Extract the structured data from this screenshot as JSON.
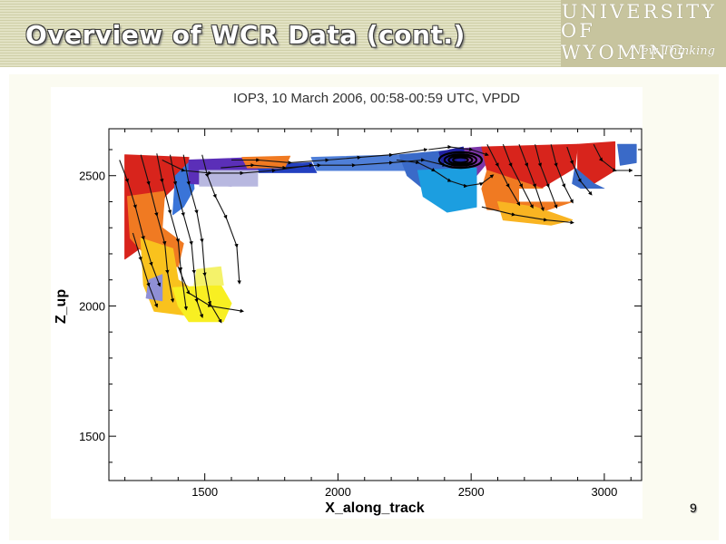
{
  "slide": {
    "title": "Overview of WCR Data (cont.)",
    "page_number": "9",
    "logo": {
      "line1": "UNIVERSITY",
      "line2": "OF WYOMING",
      "tagline": "New Thinking"
    }
  },
  "chart_data": {
    "type": "contour-vector",
    "title": "IOP3,  10 March 2006, 00:58-00:59 UTC, VPDD",
    "xlabel": "X_along_track",
    "ylabel": "Z_up",
    "xlim": [
      1140,
      3140
    ],
    "ylim": [
      1330,
      2680
    ],
    "x_ticks": [
      1500,
      2000,
      2500,
      3000
    ],
    "y_ticks": [
      1500,
      2000,
      2500
    ],
    "regions": [
      {
        "color": "#d8241c",
        "points": [
          [
            1200,
            2580
          ],
          [
            1440,
            2570
          ],
          [
            1430,
            2500
          ],
          [
            1350,
            2420
          ],
          [
            1310,
            2260
          ],
          [
            1200,
            2180
          ],
          [
            1200,
            2400
          ]
        ]
      },
      {
        "color": "#f07a22",
        "points": [
          [
            1210,
            2420
          ],
          [
            1350,
            2440
          ],
          [
            1340,
            2300
          ],
          [
            1420,
            2240
          ],
          [
            1400,
            2150
          ],
          [
            1300,
            2170
          ],
          [
            1220,
            2260
          ]
        ]
      },
      {
        "color": "#f9c21d",
        "points": [
          [
            1260,
            2260
          ],
          [
            1380,
            2220
          ],
          [
            1400,
            2100
          ],
          [
            1460,
            2060
          ],
          [
            1460,
            1960
          ],
          [
            1310,
            1980
          ],
          [
            1270,
            2080
          ]
        ]
      },
      {
        "color": "#f8ef22",
        "points": [
          [
            1380,
            2070
          ],
          [
            1560,
            2080
          ],
          [
            1600,
            2010
          ],
          [
            1570,
            1940
          ],
          [
            1440,
            1940
          ],
          [
            1400,
            2000
          ]
        ]
      },
      {
        "color": "#f4f26a",
        "points": [
          [
            1470,
            2140
          ],
          [
            1560,
            2150
          ],
          [
            1570,
            2080
          ],
          [
            1460,
            2080
          ]
        ]
      },
      {
        "color": "#8f8fd6",
        "points": [
          [
            1290,
            2100
          ],
          [
            1340,
            2120
          ],
          [
            1340,
            2020
          ],
          [
            1280,
            2030
          ]
        ]
      },
      {
        "color": "#3a74d8",
        "points": [
          [
            1390,
            2500
          ],
          [
            1450,
            2560
          ],
          [
            1460,
            2450
          ],
          [
            1420,
            2380
          ],
          [
            1380,
            2350
          ]
        ]
      },
      {
        "color": "#5b2fb8",
        "points": [
          [
            1440,
            2560
          ],
          [
            1700,
            2570
          ],
          [
            1720,
            2520
          ],
          [
            1600,
            2460
          ],
          [
            1440,
            2470
          ]
        ]
      },
      {
        "color": "#2340c0",
        "points": [
          [
            1700,
            2540
          ],
          [
            1900,
            2550
          ],
          [
            1920,
            2510
          ],
          [
            1700,
            2500
          ]
        ]
      },
      {
        "color": "#b8b8e0",
        "points": [
          [
            1480,
            2520
          ],
          [
            1700,
            2520
          ],
          [
            1700,
            2460
          ],
          [
            1480,
            2460
          ]
        ]
      },
      {
        "color": "#f07a22",
        "points": [
          [
            1640,
            2570
          ],
          [
            1820,
            2575
          ],
          [
            1800,
            2530
          ],
          [
            1660,
            2530
          ]
        ]
      },
      {
        "color": "#4f7fd8",
        "points": [
          [
            1900,
            2570
          ],
          [
            2250,
            2580
          ],
          [
            2260,
            2520
          ],
          [
            1920,
            2520
          ]
        ]
      },
      {
        "color": "#3a6ac8",
        "points": [
          [
            2230,
            2580
          ],
          [
            2450,
            2600
          ],
          [
            2480,
            2510
          ],
          [
            2440,
            2460
          ],
          [
            2320,
            2450
          ],
          [
            2260,
            2500
          ]
        ]
      },
      {
        "color": "#7d36a8",
        "points": [
          [
            2420,
            2600
          ],
          [
            2540,
            2610
          ],
          [
            2560,
            2550
          ],
          [
            2520,
            2500
          ],
          [
            2430,
            2500
          ]
        ]
      },
      {
        "color": "#1c9ee0",
        "points": [
          [
            2300,
            2520
          ],
          [
            2520,
            2530
          ],
          [
            2520,
            2380
          ],
          [
            2410,
            2360
          ],
          [
            2320,
            2420
          ]
        ]
      },
      {
        "color": "#2020a0",
        "points": [
          [
            2380,
            2590
          ],
          [
            2470,
            2610
          ],
          [
            2480,
            2550
          ],
          [
            2390,
            2550
          ]
        ]
      },
      {
        "color": "#d8241c",
        "points": [
          [
            2540,
            2610
          ],
          [
            2900,
            2620
          ],
          [
            2890,
            2530
          ],
          [
            2760,
            2450
          ],
          [
            2600,
            2470
          ],
          [
            2560,
            2520
          ]
        ]
      },
      {
        "color": "#f07a22",
        "points": [
          [
            2560,
            2520
          ],
          [
            2770,
            2450
          ],
          [
            2880,
            2400
          ],
          [
            2760,
            2360
          ],
          [
            2560,
            2370
          ],
          [
            2540,
            2450
          ]
        ]
      },
      {
        "color": "#f9b422",
        "points": [
          [
            2600,
            2400
          ],
          [
            2740,
            2380
          ],
          [
            2880,
            2330
          ],
          [
            2800,
            2310
          ],
          [
            2620,
            2330
          ]
        ]
      },
      {
        "color": "#d8241c",
        "points": [
          [
            2900,
            2620
          ],
          [
            3040,
            2630
          ],
          [
            3040,
            2520
          ],
          [
            2960,
            2470
          ],
          [
            2900,
            2480
          ]
        ]
      },
      {
        "color": "#3a6ac8",
        "points": [
          [
            2890,
            2530
          ],
          [
            2960,
            2470
          ],
          [
            3000,
            2450
          ],
          [
            2950,
            2430
          ],
          [
            2880,
            2470
          ]
        ]
      },
      {
        "color": "#3a6ac8",
        "points": [
          [
            3050,
            2620
          ],
          [
            3120,
            2620
          ],
          [
            3120,
            2550
          ],
          [
            3060,
            2540
          ]
        ]
      }
    ],
    "streamlines": [
      [
        [
          1180,
          2560
        ],
        [
          1210,
          2480
        ],
        [
          1240,
          2380
        ],
        [
          1270,
          2260
        ],
        [
          1300,
          2160
        ],
        [
          1330,
          2080
        ]
      ],
      [
        [
          1260,
          2580
        ],
        [
          1290,
          2470
        ],
        [
          1320,
          2350
        ],
        [
          1350,
          2240
        ],
        [
          1360,
          2130
        ],
        [
          1380,
          2020
        ]
      ],
      [
        [
          1320,
          2585
        ],
        [
          1340,
          2480
        ],
        [
          1370,
          2360
        ],
        [
          1400,
          2250
        ],
        [
          1410,
          2140
        ],
        [
          1430,
          1990
        ]
      ],
      [
        [
          1370,
          2580
        ],
        [
          1390,
          2470
        ],
        [
          1420,
          2350
        ],
        [
          1450,
          2240
        ],
        [
          1460,
          2130
        ],
        [
          1470,
          2020
        ],
        [
          1490,
          1960
        ]
      ],
      [
        [
          1420,
          2580
        ],
        [
          1440,
          2470
        ],
        [
          1470,
          2360
        ],
        [
          1490,
          2250
        ],
        [
          1500,
          2120
        ],
        [
          1520,
          2010
        ],
        [
          1560,
          1940
        ]
      ],
      [
        [
          1490,
          2580
        ],
        [
          1510,
          2500
        ],
        [
          1540,
          2420
        ],
        [
          1580,
          2340
        ],
        [
          1620,
          2230
        ],
        [
          1630,
          2090
        ]
      ],
      [
        [
          1340,
          2560
        ],
        [
          1420,
          2520
        ],
        [
          1520,
          2510
        ],
        [
          1640,
          2510
        ],
        [
          1760,
          2520
        ],
        [
          1900,
          2540
        ]
      ],
      [
        [
          1230,
          2280
        ],
        [
          1260,
          2180
        ],
        [
          1290,
          2080
        ],
        [
          1320,
          2000
        ]
      ],
      [
        [
          1400,
          2150
        ],
        [
          1440,
          2050
        ],
        [
          1520,
          2000
        ],
        [
          1640,
          1980
        ]
      ],
      [
        [
          1600,
          2560
        ],
        [
          1700,
          2560
        ],
        [
          1820,
          2550
        ],
        [
          1960,
          2560
        ],
        [
          2080,
          2570
        ],
        [
          2200,
          2580
        ],
        [
          2330,
          2600
        ]
      ],
      [
        [
          1560,
          2530
        ],
        [
          1680,
          2540
        ],
        [
          1800,
          2530
        ],
        [
          1930,
          2540
        ],
        [
          2060,
          2540
        ],
        [
          2200,
          2550
        ],
        [
          2320,
          2560
        ],
        [
          2400,
          2540
        ]
      ],
      [
        [
          2220,
          2560
        ],
        [
          2300,
          2550
        ],
        [
          2360,
          2520
        ],
        [
          2420,
          2480
        ],
        [
          2480,
          2460
        ],
        [
          2540,
          2470
        ],
        [
          2580,
          2500
        ]
      ],
      [
        [
          2340,
          2600
        ],
        [
          2420,
          2610
        ],
        [
          2500,
          2600
        ],
        [
          2560,
          2580
        ]
      ],
      [
        [
          2560,
          2620
        ],
        [
          2600,
          2540
        ],
        [
          2640,
          2460
        ],
        [
          2680,
          2390
        ]
      ],
      [
        [
          2620,
          2620
        ],
        [
          2650,
          2540
        ],
        [
          2690,
          2460
        ],
        [
          2730,
          2380
        ]
      ],
      [
        [
          2680,
          2620
        ],
        [
          2710,
          2540
        ],
        [
          2740,
          2460
        ],
        [
          2770,
          2370
        ]
      ],
      [
        [
          2740,
          2620
        ],
        [
          2760,
          2540
        ],
        [
          2790,
          2460
        ],
        [
          2820,
          2380
        ]
      ],
      [
        [
          2800,
          2620
        ],
        [
          2820,
          2540
        ],
        [
          2850,
          2460
        ],
        [
          2880,
          2400
        ]
      ],
      [
        [
          2860,
          2610
        ],
        [
          2880,
          2550
        ],
        [
          2910,
          2480
        ],
        [
          2950,
          2430
        ]
      ],
      [
        [
          2960,
          2620
        ],
        [
          2990,
          2560
        ],
        [
          3040,
          2520
        ],
        [
          3100,
          2520
        ]
      ],
      [
        [
          2540,
          2380
        ],
        [
          2660,
          2350
        ],
        [
          2780,
          2330
        ],
        [
          2880,
          2320
        ]
      ]
    ],
    "vortex": {
      "center": [
        2460,
        2560
      ],
      "radii": [
        [
          28,
          10
        ],
        [
          44,
          16
        ],
        [
          60,
          22
        ],
        [
          80,
          30
        ]
      ]
    },
    "blanks": [
      {
        "x": [
          2680,
          3140
        ],
        "y": [
          2400,
          2450
        ]
      },
      {
        "x": [
          1700,
          2200
        ],
        "y": [
          2450,
          2510
        ]
      }
    ]
  }
}
